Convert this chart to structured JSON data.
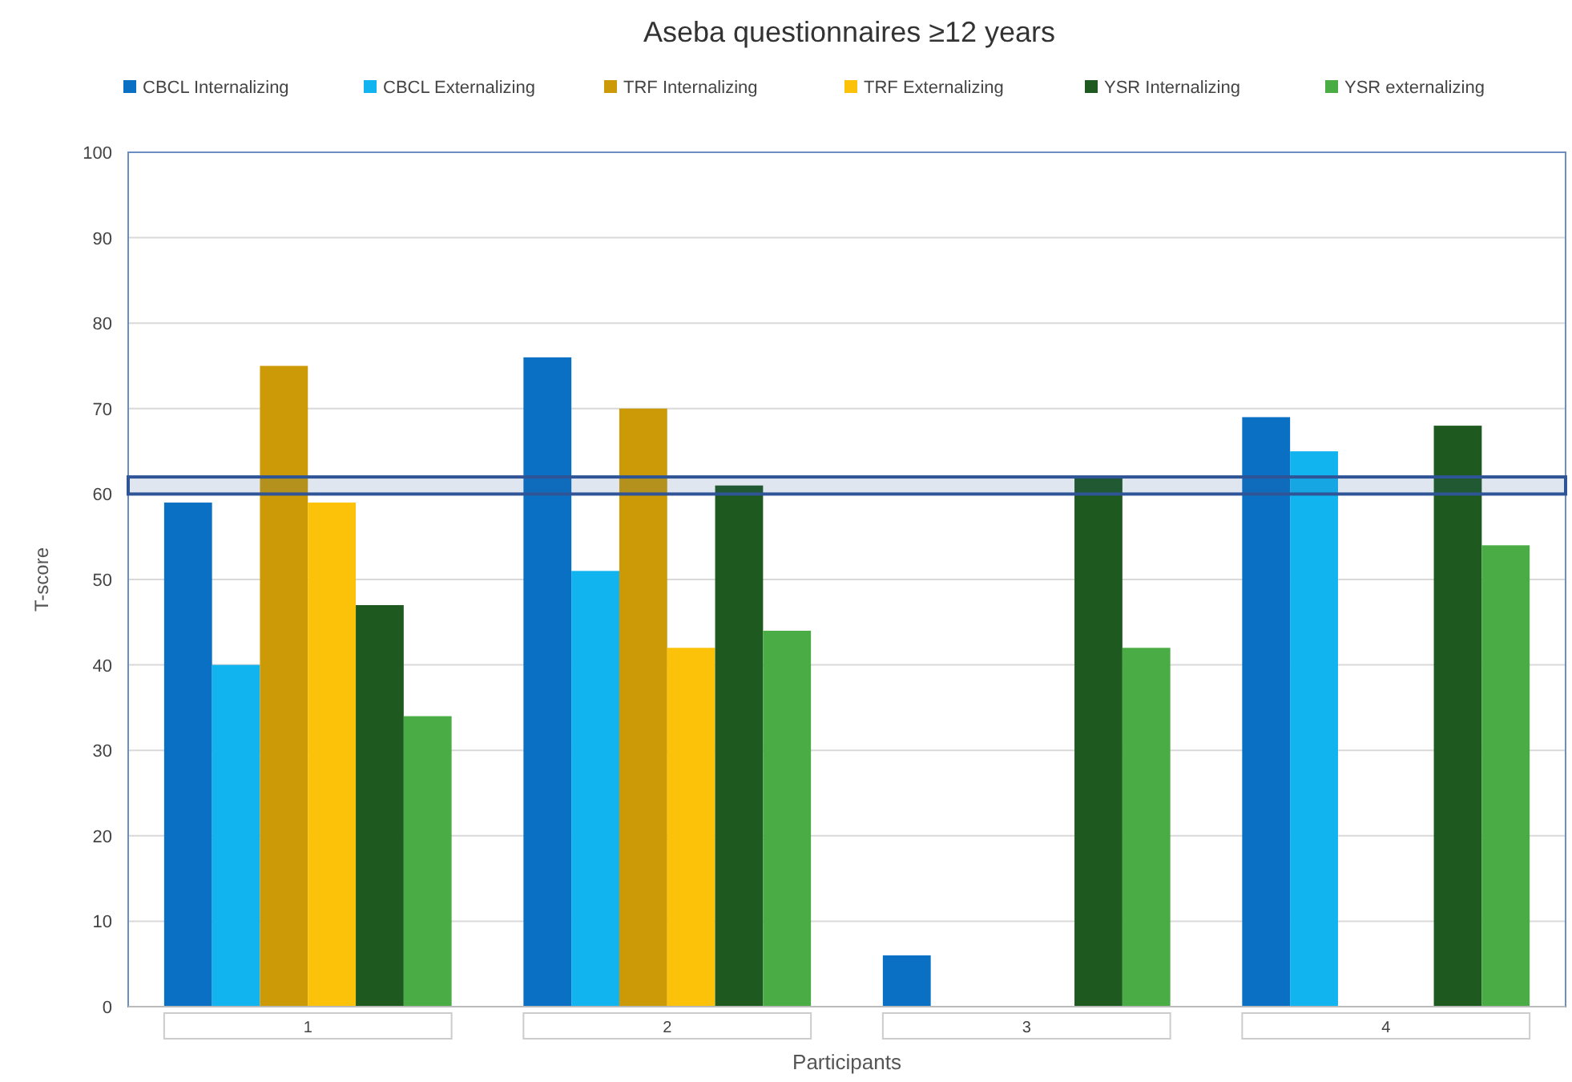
{
  "chart_data": {
    "type": "bar",
    "title": "Aseba questionnaires ≥12 years",
    "xlabel": "Participants",
    "ylabel": "T-score",
    "categories": [
      "1",
      "2",
      "3",
      "4"
    ],
    "series": [
      {
        "name": "CBCL Internalizing",
        "color": "#0a70c4",
        "values": [
          59,
          76,
          6,
          69
        ]
      },
      {
        "name": "CBCL Externalizing",
        "color": "#12b4f0",
        "values": [
          40,
          51,
          null,
          65
        ]
      },
      {
        "name": "TRF Internalizing",
        "color": "#cc9a06",
        "values": [
          75,
          70,
          null,
          null
        ]
      },
      {
        "name": "TRF Externalizing",
        "color": "#fcc20a",
        "values": [
          59,
          42,
          null,
          null
        ]
      },
      {
        "name": "YSR Internalizing",
        "color": "#1e5a20",
        "values": [
          47,
          61,
          62,
          68
        ]
      },
      {
        "name": "YSR externalizing",
        "color": "#4aac44",
        "values": [
          34,
          44,
          42,
          54
        ]
      }
    ],
    "ylim": [
      0,
      100
    ],
    "yticks": [
      0,
      10,
      20,
      30,
      40,
      50,
      60,
      70,
      80,
      90,
      100
    ],
    "grid": "y",
    "legend": "top",
    "bands": [
      {
        "axis": "y",
        "from": 60,
        "to": 62,
        "color": "#2f5597"
      }
    ]
  }
}
